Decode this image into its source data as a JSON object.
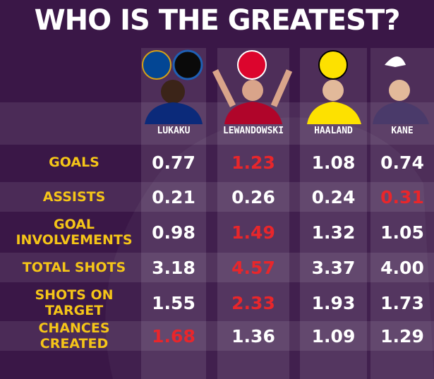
{
  "title": "WHO IS THE GREATEST?",
  "highlight_color": "#e8262b",
  "table": {
    "columns": [
      "LUKAKU",
      "LEWANDOWSKI",
      "HAALAND",
      "KANE"
    ],
    "rows": [
      {
        "label": "GOALS",
        "values": [
          "0.77",
          "1.23",
          "1.08",
          "0.74"
        ],
        "highlight": 1
      },
      {
        "label": "ASSISTS",
        "values": [
          "0.21",
          "0.26",
          "0.24",
          "0.31"
        ],
        "highlight": 3
      },
      {
        "label": "GOAL INVOLVEMENTS",
        "values": [
          "0.98",
          "1.49",
          "1.32",
          "1.05"
        ],
        "highlight": 1
      },
      {
        "label": "TOTAL SHOTS",
        "values": [
          "3.18",
          "4.57",
          "3.37",
          "4.00"
        ],
        "highlight": 1
      },
      {
        "label": "SHOTS ON TARGET",
        "values": [
          "1.55",
          "2.33",
          "1.93",
          "1.73"
        ],
        "highlight": 1
      },
      {
        "label": "CHANCES CREATED",
        "values": [
          "1.68",
          "1.36",
          "1.09",
          "1.29"
        ],
        "highlight": 0
      }
    ]
  }
}
